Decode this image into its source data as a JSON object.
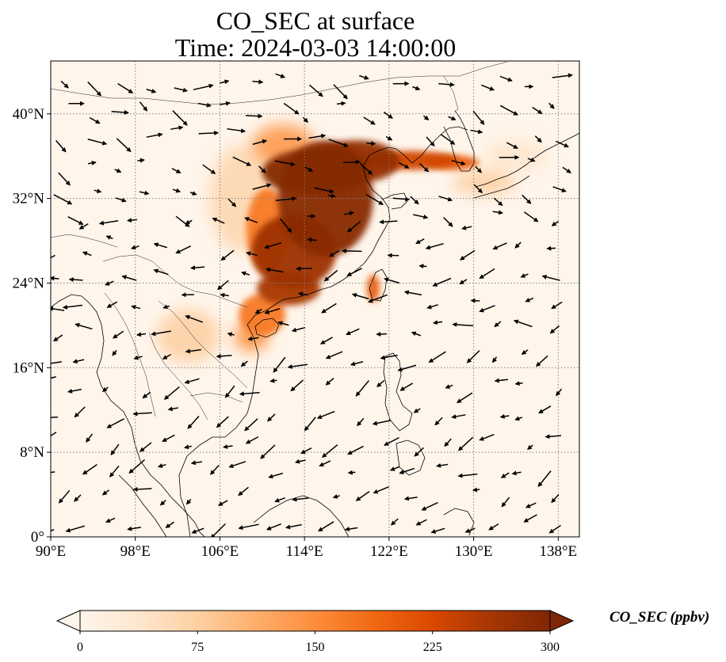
{
  "title": "CO_SEC at surface",
  "subtitle": "Time: 2024-03-03 14:00:00",
  "map": {
    "extent": {
      "lon_min": 90,
      "lon_max": 140,
      "lat_min": 0,
      "lat_max": 45
    },
    "x_ticks": [
      {
        "lon": 90,
        "label": "90°E"
      },
      {
        "lon": 98,
        "label": "98°E"
      },
      {
        "lon": 106,
        "label": "106°E"
      },
      {
        "lon": 114,
        "label": "114°E"
      },
      {
        "lon": 122,
        "label": "122°E"
      },
      {
        "lon": 130,
        "label": "130°E"
      },
      {
        "lon": 138,
        "label": "138°E"
      }
    ],
    "y_ticks": [
      {
        "lat": 0,
        "label": "0°"
      },
      {
        "lat": 8,
        "label": "8°N"
      },
      {
        "lat": 16,
        "label": "16°N"
      },
      {
        "lat": 24,
        "label": "24°N"
      },
      {
        "lat": 32,
        "label": "32°N"
      },
      {
        "lat": 40,
        "label": "40°N"
      }
    ],
    "gridlines": true,
    "wind_vectors": true
  },
  "colorbar": {
    "label": "CO_SEC (ppbv)",
    "min": 0,
    "max": 300,
    "ticks": [
      "0",
      "75",
      "150",
      "225",
      "300"
    ],
    "colormap": [
      "#fff5eb",
      "#fee6ce",
      "#fdd0a2",
      "#fdae6b",
      "#fd8d3c",
      "#f16913",
      "#d94801",
      "#a63603",
      "#7f2704"
    ],
    "extend": "both"
  },
  "plumes": [
    {
      "lon": 116,
      "lat": 32,
      "rx": 4.5,
      "ry": 5.5,
      "value": 290
    },
    {
      "lon": 115,
      "lat": 34.5,
      "rx": 5,
      "ry": 2.2,
      "value": 295
    },
    {
      "lon": 119,
      "lat": 35.5,
      "rx": 4,
      "ry": 2,
      "value": 280
    },
    {
      "lon": 124,
      "lat": 35.6,
      "rx": 4.5,
      "ry": 0.9,
      "value": 230
    },
    {
      "lon": 128,
      "lat": 35.4,
      "rx": 2.5,
      "ry": 0.7,
      "value": 200
    },
    {
      "lon": 113,
      "lat": 27,
      "rx": 4,
      "ry": 3.5,
      "value": 270
    },
    {
      "lon": 112.5,
      "lat": 23.5,
      "rx": 3,
      "ry": 1.6,
      "value": 260
    },
    {
      "lon": 110,
      "lat": 21,
      "rx": 2.2,
      "ry": 2,
      "value": 170
    },
    {
      "lon": 109,
      "lat": 19,
      "rx": 1.6,
      "ry": 1.5,
      "value": 140
    },
    {
      "lon": 110.5,
      "lat": 29,
      "rx": 2,
      "ry": 4,
      "value": 170
    },
    {
      "lon": 112,
      "lat": 37,
      "rx": 3,
      "ry": 2,
      "value": 130
    },
    {
      "lon": 108,
      "lat": 32,
      "rx": 3,
      "ry": 5,
      "value": 60
    },
    {
      "lon": 103,
      "lat": 19,
      "rx": 3,
      "ry": 2.5,
      "value": 70
    },
    {
      "lon": 120.5,
      "lat": 23.5,
      "rx": 0.6,
      "ry": 1.3,
      "value": 200
    },
    {
      "lon": 131,
      "lat": 33.5,
      "rx": 3,
      "ry": 1.2,
      "value": 70
    },
    {
      "lon": 134,
      "lat": 36,
      "rx": 3,
      "ry": 1.5,
      "value": 35
    }
  ]
}
